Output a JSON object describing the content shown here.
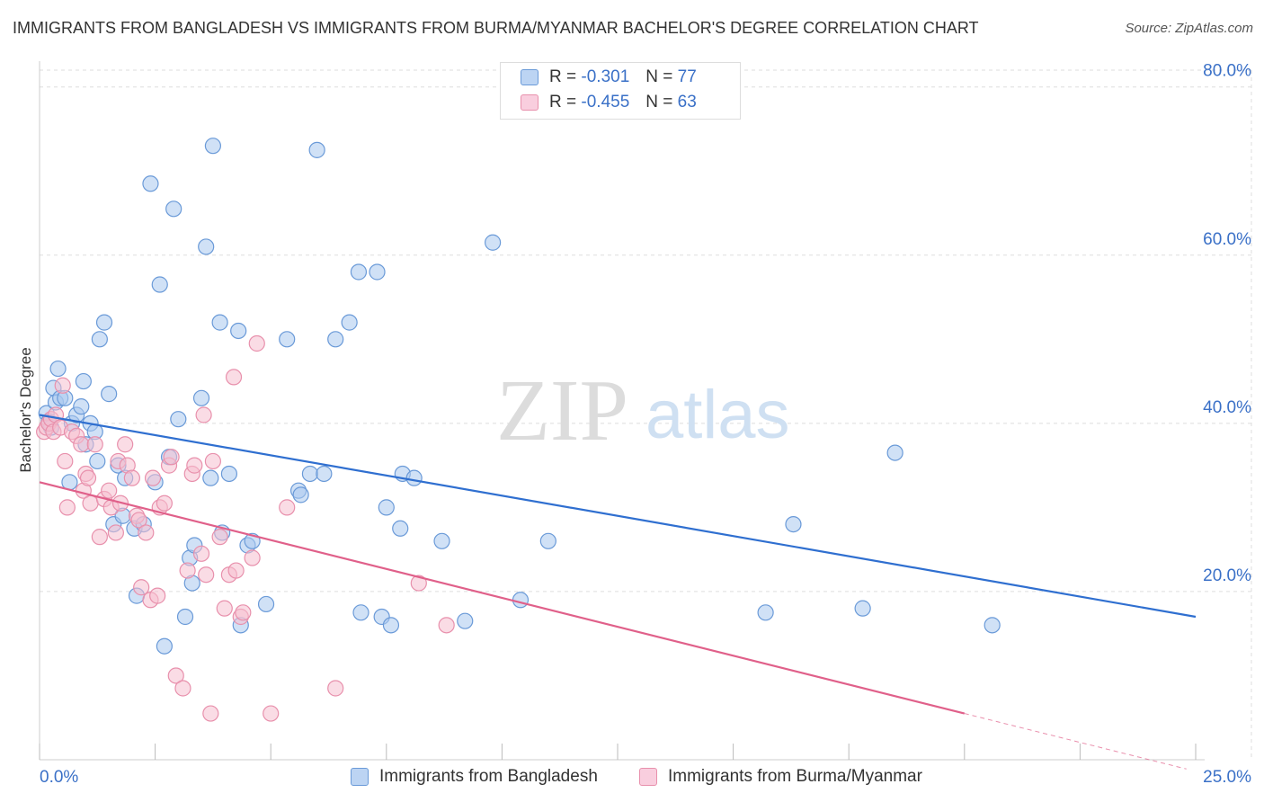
{
  "title": "IMMIGRANTS FROM BANGLADESH VS IMMIGRANTS FROM BURMA/MYANMAR BACHELOR'S DEGREE CORRELATION CHART",
  "source": "Source: ZipAtlas.com",
  "watermark": {
    "zip": "ZIP",
    "atlas": "atlas"
  },
  "legend": {
    "rows": [
      {
        "r_label": "R =",
        "r_value": "-0.301",
        "n_label": "N =",
        "n_value": "77"
      },
      {
        "r_label": "R =",
        "r_value": "-0.455",
        "n_label": "N =",
        "n_value": "63"
      }
    ]
  },
  "bottom_legend": [
    "Immigrants from Bangladesh",
    "Immigrants from Burma/Myanmar"
  ],
  "colors": {
    "blue_fill": "#aac8ee",
    "blue_stroke": "#6a9ad8",
    "blue_line": "#2f6fd0",
    "pink_fill": "#f6bfd0",
    "pink_stroke": "#e890ac",
    "pink_line": "#e0608a",
    "tick_label": "#3a70c7",
    "grid": "#dddddd"
  },
  "chart_data": {
    "type": "scatter",
    "title": "IMMIGRANTS FROM BANGLADESH VS IMMIGRANTS FROM BURMA/MYANMAR BACHELOR'S DEGREE CORRELATION CHART",
    "xlabel": "",
    "ylabel": "Bachelor's Degree",
    "xlim": [
      0,
      25
    ],
    "ylim": [
      0,
      82
    ],
    "x_tick_labels": [
      "0.0%",
      "25.0%"
    ],
    "y_ticks": [
      20,
      40,
      60,
      80
    ],
    "y_tick_labels": [
      "20.0%",
      "40.0%",
      "60.0%",
      "80.0%"
    ],
    "grid": true,
    "legend_position": "top-center",
    "series": [
      {
        "name": "Immigrants from Bangladesh",
        "r": -0.301,
        "n": 77,
        "trend": {
          "x": [
            0,
            25
          ],
          "y": [
            41.0,
            17.0
          ]
        },
        "points": [
          [
            0.15,
            41.2
          ],
          [
            0.2,
            40.2
          ],
          [
            0.25,
            39.5
          ],
          [
            0.3,
            44.2
          ],
          [
            0.35,
            42.5
          ],
          [
            0.4,
            46.5
          ],
          [
            0.45,
            43.0
          ],
          [
            0.55,
            43.0
          ],
          [
            0.65,
            33.0
          ],
          [
            0.7,
            40.0
          ],
          [
            0.8,
            41.0
          ],
          [
            0.9,
            42.0
          ],
          [
            0.95,
            45.0
          ],
          [
            1.0,
            37.5
          ],
          [
            1.1,
            40.0
          ],
          [
            1.2,
            39.0
          ],
          [
            1.25,
            35.5
          ],
          [
            1.3,
            50.0
          ],
          [
            1.4,
            52.0
          ],
          [
            1.5,
            43.5
          ],
          [
            1.6,
            28.0
          ],
          [
            1.7,
            35.0
          ],
          [
            1.8,
            29.0
          ],
          [
            1.85,
            33.5
          ],
          [
            2.05,
            27.5
          ],
          [
            2.1,
            19.5
          ],
          [
            2.25,
            28.0
          ],
          [
            2.4,
            68.5
          ],
          [
            2.5,
            33.0
          ],
          [
            2.6,
            56.5
          ],
          [
            2.7,
            13.5
          ],
          [
            2.8,
            36.0
          ],
          [
            2.9,
            65.5
          ],
          [
            3.0,
            40.5
          ],
          [
            3.15,
            17.0
          ],
          [
            3.25,
            24.0
          ],
          [
            3.3,
            21.0
          ],
          [
            3.35,
            25.5
          ],
          [
            3.5,
            43.0
          ],
          [
            3.6,
            61.0
          ],
          [
            3.7,
            33.5
          ],
          [
            3.75,
            73.0
          ],
          [
            3.9,
            52.0
          ],
          [
            3.95,
            27.0
          ],
          [
            4.1,
            34.0
          ],
          [
            4.3,
            51.0
          ],
          [
            4.35,
            16.0
          ],
          [
            4.5,
            25.5
          ],
          [
            4.6,
            26.0
          ],
          [
            4.9,
            18.5
          ],
          [
            5.35,
            50.0
          ],
          [
            5.6,
            32.0
          ],
          [
            5.65,
            31.5
          ],
          [
            5.85,
            34.0
          ],
          [
            6.0,
            72.5
          ],
          [
            6.15,
            34.0
          ],
          [
            6.4,
            50.0
          ],
          [
            6.7,
            52.0
          ],
          [
            6.9,
            58.0
          ],
          [
            6.95,
            17.5
          ],
          [
            7.3,
            58.0
          ],
          [
            7.4,
            17.0
          ],
          [
            7.5,
            30.0
          ],
          [
            7.6,
            16.0
          ],
          [
            7.8,
            27.5
          ],
          [
            7.85,
            34.0
          ],
          [
            8.1,
            33.5
          ],
          [
            8.7,
            26.0
          ],
          [
            9.2,
            16.5
          ],
          [
            9.8,
            61.5
          ],
          [
            10.4,
            19.0
          ],
          [
            11.0,
            26.0
          ],
          [
            15.7,
            17.5
          ],
          [
            16.3,
            28.0
          ],
          [
            17.8,
            18.0
          ],
          [
            18.5,
            36.5
          ],
          [
            20.6,
            16.0
          ]
        ]
      },
      {
        "name": "Immigrants from Burma/Myanmar",
        "r": -0.455,
        "n": 63,
        "trend": {
          "x": [
            0,
            20
          ],
          "y": [
            33.0,
            5.5
          ]
        },
        "points": [
          [
            0.1,
            39.0
          ],
          [
            0.15,
            39.5
          ],
          [
            0.2,
            40.0
          ],
          [
            0.25,
            40.5
          ],
          [
            0.3,
            39.0
          ],
          [
            0.35,
            41.0
          ],
          [
            0.45,
            39.5
          ],
          [
            0.5,
            44.5
          ],
          [
            0.55,
            35.5
          ],
          [
            0.6,
            30.0
          ],
          [
            0.7,
            39.0
          ],
          [
            0.8,
            38.5
          ],
          [
            0.9,
            37.5
          ],
          [
            0.95,
            32.0
          ],
          [
            1.0,
            34.0
          ],
          [
            1.05,
            33.5
          ],
          [
            1.1,
            30.5
          ],
          [
            1.2,
            37.5
          ],
          [
            1.3,
            26.5
          ],
          [
            1.4,
            31.0
          ],
          [
            1.5,
            32.0
          ],
          [
            1.55,
            30.0
          ],
          [
            1.65,
            27.0
          ],
          [
            1.7,
            35.5
          ],
          [
            1.75,
            30.5
          ],
          [
            1.85,
            37.5
          ],
          [
            1.9,
            35.0
          ],
          [
            2.0,
            33.5
          ],
          [
            2.1,
            29.0
          ],
          [
            2.15,
            28.5
          ],
          [
            2.2,
            20.5
          ],
          [
            2.3,
            27.0
          ],
          [
            2.4,
            19.0
          ],
          [
            2.45,
            33.5
          ],
          [
            2.55,
            19.5
          ],
          [
            2.6,
            30.0
          ],
          [
            2.7,
            30.5
          ],
          [
            2.8,
            35.0
          ],
          [
            2.85,
            36.0
          ],
          [
            2.95,
            10.0
          ],
          [
            3.1,
            8.5
          ],
          [
            3.2,
            22.5
          ],
          [
            3.3,
            34.0
          ],
          [
            3.35,
            35.0
          ],
          [
            3.5,
            24.5
          ],
          [
            3.55,
            41.0
          ],
          [
            3.6,
            22.0
          ],
          [
            3.7,
            5.5
          ],
          [
            3.75,
            35.5
          ],
          [
            3.9,
            26.5
          ],
          [
            4.0,
            18.0
          ],
          [
            4.1,
            22.0
          ],
          [
            4.2,
            45.5
          ],
          [
            4.25,
            22.5
          ],
          [
            4.35,
            17.0
          ],
          [
            4.4,
            17.5
          ],
          [
            4.6,
            24.0
          ],
          [
            4.7,
            49.5
          ],
          [
            5.0,
            5.5
          ],
          [
            5.35,
            30.0
          ],
          [
            6.4,
            8.5
          ],
          [
            8.2,
            21.0
          ],
          [
            8.8,
            16.0
          ]
        ]
      }
    ]
  }
}
